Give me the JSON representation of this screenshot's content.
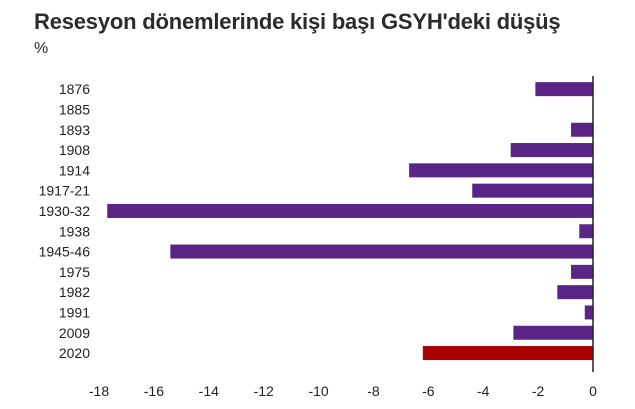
{
  "chart_data": {
    "type": "bar",
    "orientation": "horizontal",
    "title": "Resesyon dönemlerinde kişi başı GSYH'deki düşüş",
    "subtitle": "%",
    "xlabel": "",
    "ylabel": "",
    "xlim": [
      -18,
      0
    ],
    "xticks": [
      -18,
      -16,
      -14,
      -12,
      -10,
      -8,
      -6,
      -4,
      -2,
      0
    ],
    "categories": [
      "1876",
      "1885",
      "1893",
      "1908",
      "1914",
      "1917-21",
      "1930-32",
      "1938",
      "1945-46",
      "1975",
      "1982",
      "1991",
      "2009",
      "2020"
    ],
    "values": [
      -2.1,
      0,
      -0.8,
      -3.0,
      -6.7,
      -4.4,
      -17.7,
      -0.5,
      -15.4,
      -0.8,
      -1.3,
      -0.3,
      -2.9,
      -6.2
    ],
    "colors": {
      "default": "#5b2487",
      "highlight": "#a80000",
      "highlight_category": "2020",
      "axis": "#222222"
    },
    "grid": false,
    "legend": "none"
  }
}
